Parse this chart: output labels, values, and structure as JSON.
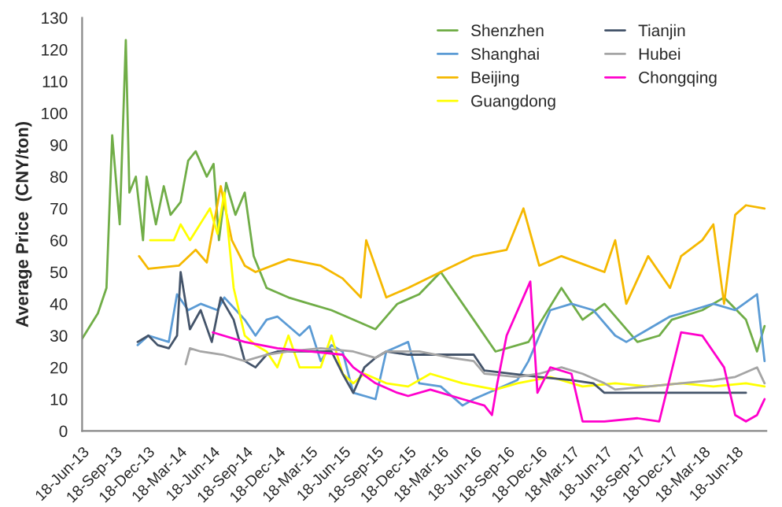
{
  "chart_data": {
    "type": "line",
    "ylabel": "Average Price  (CNY/ton)",
    "xlim": [
      "2013-06-18",
      "2018-09-10"
    ],
    "ylim": [
      0,
      130
    ],
    "yticks": [
      0,
      10,
      20,
      30,
      40,
      50,
      60,
      70,
      80,
      90,
      100,
      110,
      120,
      130
    ],
    "xticks": [
      {
        "value": "2013-06-18",
        "label": "18-Jun-13"
      },
      {
        "value": "2013-09-18",
        "label": "18-Sep-13"
      },
      {
        "value": "2013-12-18",
        "label": "18-Dec-13"
      },
      {
        "value": "2014-03-18",
        "label": "18-Mar-14"
      },
      {
        "value": "2014-06-18",
        "label": "18-Jun-14"
      },
      {
        "value": "2014-09-18",
        "label": "18-Sep-14"
      },
      {
        "value": "2014-12-18",
        "label": "18-Dec-14"
      },
      {
        "value": "2015-03-18",
        "label": "18-Mar-15"
      },
      {
        "value": "2015-06-18",
        "label": "18-Jun-15"
      },
      {
        "value": "2015-09-18",
        "label": "18-Sep-15"
      },
      {
        "value": "2015-12-18",
        "label": "18-Dec-15"
      },
      {
        "value": "2016-03-18",
        "label": "18-Mar-16"
      },
      {
        "value": "2016-06-18",
        "label": "18-Jun-16"
      },
      {
        "value": "2016-09-18",
        "label": "18-Sep-16"
      },
      {
        "value": "2016-12-18",
        "label": "18-Dec-16"
      },
      {
        "value": "2017-03-18",
        "label": "18-Mar-17"
      },
      {
        "value": "2017-06-18",
        "label": "18-Jun-17"
      },
      {
        "value": "2017-09-18",
        "label": "18-Sep-17"
      },
      {
        "value": "2017-12-18",
        "label": "18-Dec-17"
      },
      {
        "value": "2018-03-18",
        "label": "18-Mar-18"
      },
      {
        "value": "2018-06-18",
        "label": "18-Jun-18"
      }
    ],
    "grid": false,
    "legend": "top right",
    "marker": "none",
    "line_style": "solid",
    "series": [
      {
        "name": "Shenzhen",
        "color": "#70ad47",
        "x": [
          "2013-06-18",
          "2013-08-01",
          "2013-08-25",
          "2013-09-10",
          "2013-10-01",
          "2013-10-18",
          "2013-10-28",
          "2013-11-15",
          "2013-12-05",
          "2013-12-15",
          "2014-01-10",
          "2014-02-01",
          "2014-02-20",
          "2014-03-20",
          "2014-04-10",
          "2014-05-01",
          "2014-06-01",
          "2014-06-20",
          "2014-07-05",
          "2014-07-25",
          "2014-08-20",
          "2014-09-15",
          "2014-10-10",
          "2014-11-15",
          "2015-01-15",
          "2015-03-15",
          "2015-05-15",
          "2015-07-15",
          "2015-09-15",
          "2015-11-15",
          "2016-01-15",
          "2016-03-15",
          "2016-06-15",
          "2016-08-15",
          "2016-11-15",
          "2017-02-15",
          "2017-04-15",
          "2017-06-15",
          "2017-09-15",
          "2017-11-15",
          "2017-12-20",
          "2018-03-15",
          "2018-05-15",
          "2018-07-15",
          "2018-08-15",
          "2018-09-05"
        ],
        "values": [
          29,
          37,
          45,
          93,
          65,
          123,
          75,
          80,
          60,
          80,
          65,
          77,
          68,
          72,
          85,
          88,
          80,
          84,
          60,
          78,
          68,
          75,
          55,
          45,
          42,
          40,
          38,
          35,
          32,
          40,
          43,
          50,
          35,
          25,
          28,
          45,
          35,
          40,
          28,
          30,
          35,
          38,
          42,
          35,
          25,
          33
        ]
      },
      {
        "name": "Shanghai",
        "color": "#5b9bd5",
        "x": [
          "2013-11-20",
          "2013-12-20",
          "2014-02-15",
          "2014-03-10",
          "2014-04-10",
          "2014-05-15",
          "2014-07-01",
          "2014-07-20",
          "2014-09-15",
          "2014-10-15",
          "2014-11-15",
          "2014-12-15",
          "2015-02-15",
          "2015-03-15",
          "2015-04-15",
          "2015-05-15",
          "2015-06-15",
          "2015-07-15",
          "2015-09-15",
          "2015-10-15",
          "2015-12-15",
          "2016-01-15",
          "2016-03-15",
          "2016-05-15",
          "2016-06-15",
          "2016-08-15",
          "2016-10-15",
          "2016-11-15",
          "2017-01-15",
          "2017-03-15",
          "2017-05-15",
          "2017-07-15",
          "2017-08-15",
          "2017-10-15",
          "2017-12-15",
          "2018-02-15",
          "2018-04-15",
          "2018-06-15",
          "2018-08-15",
          "2018-09-05"
        ],
        "values": [
          27,
          30,
          28,
          43,
          38,
          40,
          38,
          42,
          35,
          30,
          35,
          36,
          30,
          33,
          22,
          27,
          25,
          12,
          10,
          25,
          28,
          15,
          14,
          8,
          10,
          13,
          16,
          22,
          38,
          40,
          38,
          30,
          28,
          32,
          36,
          38,
          40,
          38,
          43,
          22
        ]
      },
      {
        "name": "Beijing",
        "color": "#f5b800",
        "x": [
          "2013-11-24",
          "2013-12-20",
          "2014-03-15",
          "2014-05-01",
          "2014-06-01",
          "2014-07-10",
          "2014-08-10",
          "2014-09-15",
          "2014-10-15",
          "2015-01-15",
          "2015-04-15",
          "2015-06-15",
          "2015-08-05",
          "2015-08-20",
          "2015-10-15",
          "2015-12-15",
          "2016-03-15",
          "2016-06-15",
          "2016-09-15",
          "2016-11-01",
          "2016-12-15",
          "2017-02-15",
          "2017-06-15",
          "2017-07-15",
          "2017-08-15",
          "2017-10-15",
          "2017-12-15",
          "2018-01-15",
          "2018-03-15",
          "2018-04-15",
          "2018-05-15",
          "2018-06-15",
          "2018-07-15",
          "2018-09-05"
        ],
        "values": [
          55,
          51,
          52,
          57,
          53,
          77,
          60,
          52,
          50,
          54,
          52,
          48,
          42,
          60,
          42,
          45,
          50,
          55,
          57,
          70,
          52,
          55,
          50,
          60,
          40,
          55,
          45,
          55,
          60,
          65,
          40,
          68,
          71,
          70
        ]
      },
      {
        "name": "Guangdong",
        "color": "#ffff00",
        "x": [
          "2013-12-25",
          "2014-03-01",
          "2014-03-20",
          "2014-04-15",
          "2014-06-10",
          "2014-07-01",
          "2014-07-20",
          "2014-08-15",
          "2014-09-15",
          "2014-10-15",
          "2014-11-15",
          "2014-12-15",
          "2015-01-15",
          "2015-02-15",
          "2015-04-15",
          "2015-05-15",
          "2015-06-15",
          "2015-07-15",
          "2015-08-15",
          "2015-10-15",
          "2015-12-15",
          "2016-02-15",
          "2016-05-15",
          "2016-08-15",
          "2016-10-15",
          "2017-01-15",
          "2017-04-15",
          "2017-07-15",
          "2017-10-15",
          "2018-01-15",
          "2018-04-15",
          "2018-07-15",
          "2018-09-05"
        ],
        "values": [
          60,
          60,
          65,
          60,
          70,
          62,
          75,
          45,
          30,
          27,
          25,
          20,
          30,
          20,
          20,
          30,
          18,
          15,
          18,
          15,
          14,
          18,
          15,
          13,
          15,
          17,
          14,
          15,
          14,
          15,
          14,
          15,
          14
        ]
      },
      {
        "name": "Tianjin",
        "color": "#44546a",
        "x": [
          "2013-11-20",
          "2013-12-20",
          "2014-01-15",
          "2014-02-15",
          "2014-03-10",
          "2014-03-20",
          "2014-04-15",
          "2014-05-15",
          "2014-06-15",
          "2014-07-10",
          "2014-08-15",
          "2014-09-15",
          "2014-10-15",
          "2014-11-15",
          "2014-12-15",
          "2015-05-15",
          "2015-06-15",
          "2015-07-15",
          "2015-08-15",
          "2015-09-15",
          "2015-10-15",
          "2015-12-15",
          "2016-04-15",
          "2016-06-15",
          "2016-07-15",
          "2016-12-15",
          "2017-03-15",
          "2017-05-15",
          "2017-06-15",
          "2018-03-15",
          "2018-07-15"
        ],
        "values": [
          28,
          30,
          27,
          26,
          30,
          50,
          32,
          38,
          28,
          42,
          35,
          22,
          20,
          24,
          25,
          25,
          18,
          12,
          20,
          23,
          25,
          24,
          24,
          24,
          19,
          17,
          16,
          15,
          12,
          12,
          12
        ]
      },
      {
        "name": "Hubei",
        "color": "#a5a5a5",
        "x": [
          "2014-04-03",
          "2014-04-15",
          "2014-05-15",
          "2014-07-15",
          "2014-09-15",
          "2014-11-15",
          "2015-01-15",
          "2015-04-15",
          "2015-07-15",
          "2015-09-15",
          "2015-10-15",
          "2016-01-15",
          "2016-04-15",
          "2016-06-15",
          "2016-07-15",
          "2016-10-15",
          "2016-12-15",
          "2017-02-15",
          "2017-04-15",
          "2017-06-15",
          "2017-07-15",
          "2017-10-15",
          "2018-01-15",
          "2018-04-15",
          "2018-06-15",
          "2018-08-15",
          "2018-09-05"
        ],
        "values": [
          21,
          26,
          25,
          24,
          22,
          24,
          25,
          26,
          25,
          23,
          25,
          25,
          23,
          22,
          18,
          17,
          18,
          20,
          18,
          15,
          13,
          14,
          15,
          16,
          17,
          20,
          15
        ]
      },
      {
        "name": "Chongqing",
        "color": "#ff00cc",
        "x": [
          "2014-06-18",
          "2014-09-15",
          "2014-12-15",
          "2015-03-15",
          "2015-06-15",
          "2015-07-15",
          "2015-09-15",
          "2015-11-15",
          "2015-12-15",
          "2016-02-15",
          "2016-05-15",
          "2016-07-15",
          "2016-08-05",
          "2016-08-20",
          "2016-09-15",
          "2016-11-20",
          "2016-12-10",
          "2017-01-15",
          "2017-03-15",
          "2017-04-15",
          "2017-06-15",
          "2017-09-15",
          "2017-11-15",
          "2018-01-15",
          "2018-03-15",
          "2018-05-15",
          "2018-06-15",
          "2018-07-15",
          "2018-08-15",
          "2018-09-05"
        ],
        "values": [
          31,
          28,
          26,
          25,
          24,
          20,
          15,
          12,
          11,
          13,
          10,
          8,
          5,
          15,
          30,
          47,
          12,
          20,
          18,
          3,
          3,
          4,
          3,
          31,
          30,
          20,
          5,
          3,
          5,
          10
        ]
      }
    ]
  }
}
